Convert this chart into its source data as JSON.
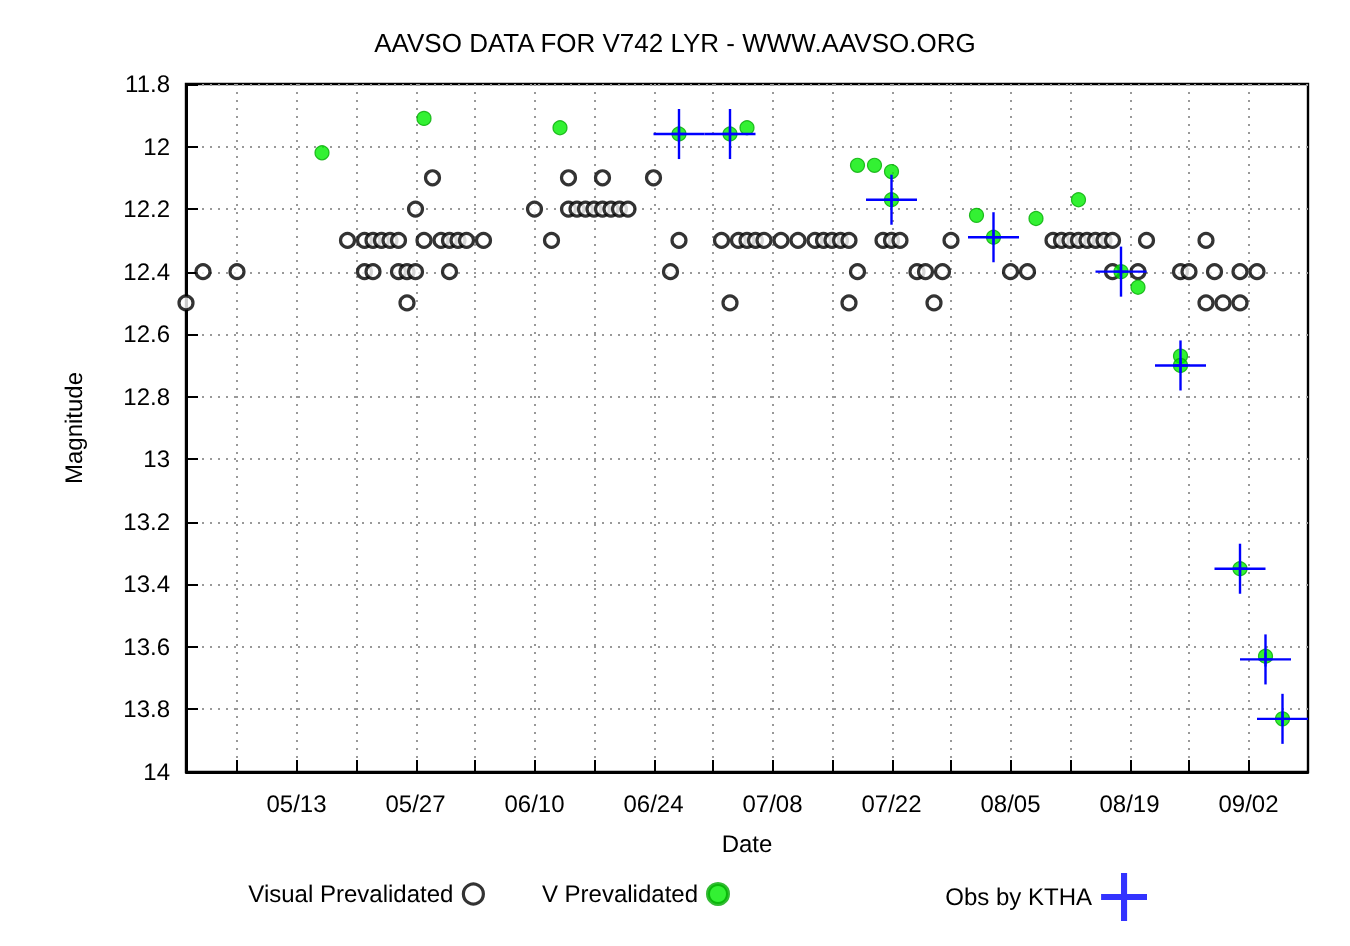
{
  "chart_data": {
    "type": "scatter",
    "title": "AAVSO DATA FOR V742 LYR - WWW.AAVSO.ORG",
    "xlabel": "Date",
    "ylabel": "Magnitude",
    "xlim": [
      "--04-30",
      "--09-09"
    ],
    "xticks": [
      {
        "value": "--05-06",
        "label": null
      },
      {
        "value": "--05-13",
        "label": "05/13"
      },
      {
        "value": "--05-20",
        "label": null
      },
      {
        "value": "--05-27",
        "label": "05/27"
      },
      {
        "value": "--06-03",
        "label": null
      },
      {
        "value": "--06-10",
        "label": "06/10"
      },
      {
        "value": "--06-17",
        "label": null
      },
      {
        "value": "--06-24",
        "label": "06/24"
      },
      {
        "value": "--07-01",
        "label": null
      },
      {
        "value": "--07-08",
        "label": "07/08"
      },
      {
        "value": "--07-15",
        "label": null
      },
      {
        "value": "--07-22",
        "label": "07/22"
      },
      {
        "value": "--07-29",
        "label": null
      },
      {
        "value": "--08-05",
        "label": "08/05"
      },
      {
        "value": "--08-12",
        "label": null
      },
      {
        "value": "--08-19",
        "label": "08/19"
      },
      {
        "value": "--08-26",
        "label": null
      },
      {
        "value": "--09-02",
        "label": "09/02"
      }
    ],
    "ylim": [
      14,
      11.8
    ],
    "yticks": [
      11.8,
      12,
      12.2,
      12.4,
      12.6,
      12.8,
      13,
      13.2,
      13.4,
      13.6,
      13.8,
      14
    ],
    "grid": true,
    "legend": "bottom",
    "series": [
      {
        "name": "Visual Prevalidated",
        "color": "#000000",
        "marker": "circle",
        "x": [
          "--04-30",
          "--05-02",
          "--05-06",
          "--05-19",
          "--05-21",
          "--05-21",
          "--05-22",
          "--05-22",
          "--05-23",
          "--05-24",
          "--05-25",
          "--05-25",
          "--05-26",
          "--05-26",
          "--05-27",
          "--05-27",
          "--05-28",
          "--05-29",
          "--05-30",
          "--05-31",
          "--05-31",
          "--06-01",
          "--06-02",
          "--06-04",
          "--06-10",
          "--06-12",
          "--06-14",
          "--06-14",
          "--06-15",
          "--06-16",
          "--06-17",
          "--06-18",
          "--06-18",
          "--06-19",
          "--06-20",
          "--06-21",
          "--06-24",
          "--06-26",
          "--06-27",
          "--07-02",
          "--07-03",
          "--07-04",
          "--07-05",
          "--07-06",
          "--07-07",
          "--07-09",
          "--07-11",
          "--07-13",
          "--07-14",
          "--07-15",
          "--07-16",
          "--07-17",
          "--07-17",
          "--07-18",
          "--07-21",
          "--07-22",
          "--07-23",
          "--07-25",
          "--07-26",
          "--07-27",
          "--07-28",
          "--07-29",
          "--08-05",
          "--08-07",
          "--08-10",
          "--08-11",
          "--08-12",
          "--08-13",
          "--08-14",
          "--08-15",
          "--08-16",
          "--08-17",
          "--08-17",
          "--08-20",
          "--08-21",
          "--08-25",
          "--08-26",
          "--08-28",
          "--08-28",
          "--08-29",
          "--08-30",
          "--09-01",
          "--09-01",
          "--09-03"
        ],
        "values": [
          12.5,
          12.4,
          12.4,
          12.3,
          12.3,
          12.4,
          12.3,
          12.4,
          12.3,
          12.3,
          12.3,
          12.4,
          12.4,
          12.5,
          12.4,
          12.2,
          12.3,
          12.1,
          12.3,
          12.3,
          12.4,
          12.3,
          12.3,
          12.3,
          12.2,
          12.3,
          12.1,
          12.2,
          12.2,
          12.2,
          12.2,
          12.2,
          12.1,
          12.2,
          12.2,
          12.2,
          12.1,
          12.4,
          12.3,
          12.3,
          12.5,
          12.3,
          12.3,
          12.3,
          12.3,
          12.3,
          12.3,
          12.3,
          12.3,
          12.3,
          12.3,
          12.3,
          12.5,
          12.4,
          12.3,
          12.3,
          12.3,
          12.4,
          12.4,
          12.5,
          12.4,
          12.3,
          12.4,
          12.4,
          12.3,
          12.3,
          12.3,
          12.3,
          12.3,
          12.3,
          12.3,
          12.3,
          12.4,
          12.4,
          12.3,
          12.4,
          12.4,
          12.3,
          12.5,
          12.4,
          12.5,
          12.5,
          12.4,
          12.4
        ]
      },
      {
        "name": "V Prevalidated",
        "color": "#00ee00",
        "marker": "circle",
        "x": [
          "--05-16",
          "--05-28",
          "--06-13",
          "--06-27",
          "--07-03",
          "--07-05",
          "--07-18",
          "--07-20",
          "--07-22",
          "--07-22",
          "--08-01",
          "--08-03",
          "--08-08",
          "--08-13",
          "--08-18",
          "--08-20",
          "--08-25",
          "--08-25",
          "--09-01",
          "--09-04",
          "--09-06"
        ],
        "values": [
          12.02,
          11.91,
          11.94,
          11.96,
          11.96,
          11.94,
          12.06,
          12.06,
          12.08,
          12.17,
          12.22,
          12.29,
          12.23,
          12.17,
          12.4,
          12.45,
          12.67,
          12.7,
          13.35,
          13.63,
          13.83
        ]
      },
      {
        "name": "Obs by KTHA",
        "color": "#0000ff",
        "marker": "cross",
        "x": [
          "--06-27",
          "--07-03",
          "--07-22",
          "--08-03",
          "--08-18",
          "--08-25",
          "--09-01",
          "--09-04",
          "--09-06"
        ],
        "values": [
          11.96,
          11.96,
          12.17,
          12.29,
          12.4,
          12.7,
          13.35,
          13.64,
          13.83
        ],
        "errors": [
          0.08,
          0.08,
          0.08,
          0.08,
          0.08,
          0.08,
          0.08,
          0.08,
          0.08
        ],
        "xerrors": [
          3,
          3,
          3,
          3,
          3,
          3,
          3,
          3,
          3
        ]
      }
    ]
  }
}
